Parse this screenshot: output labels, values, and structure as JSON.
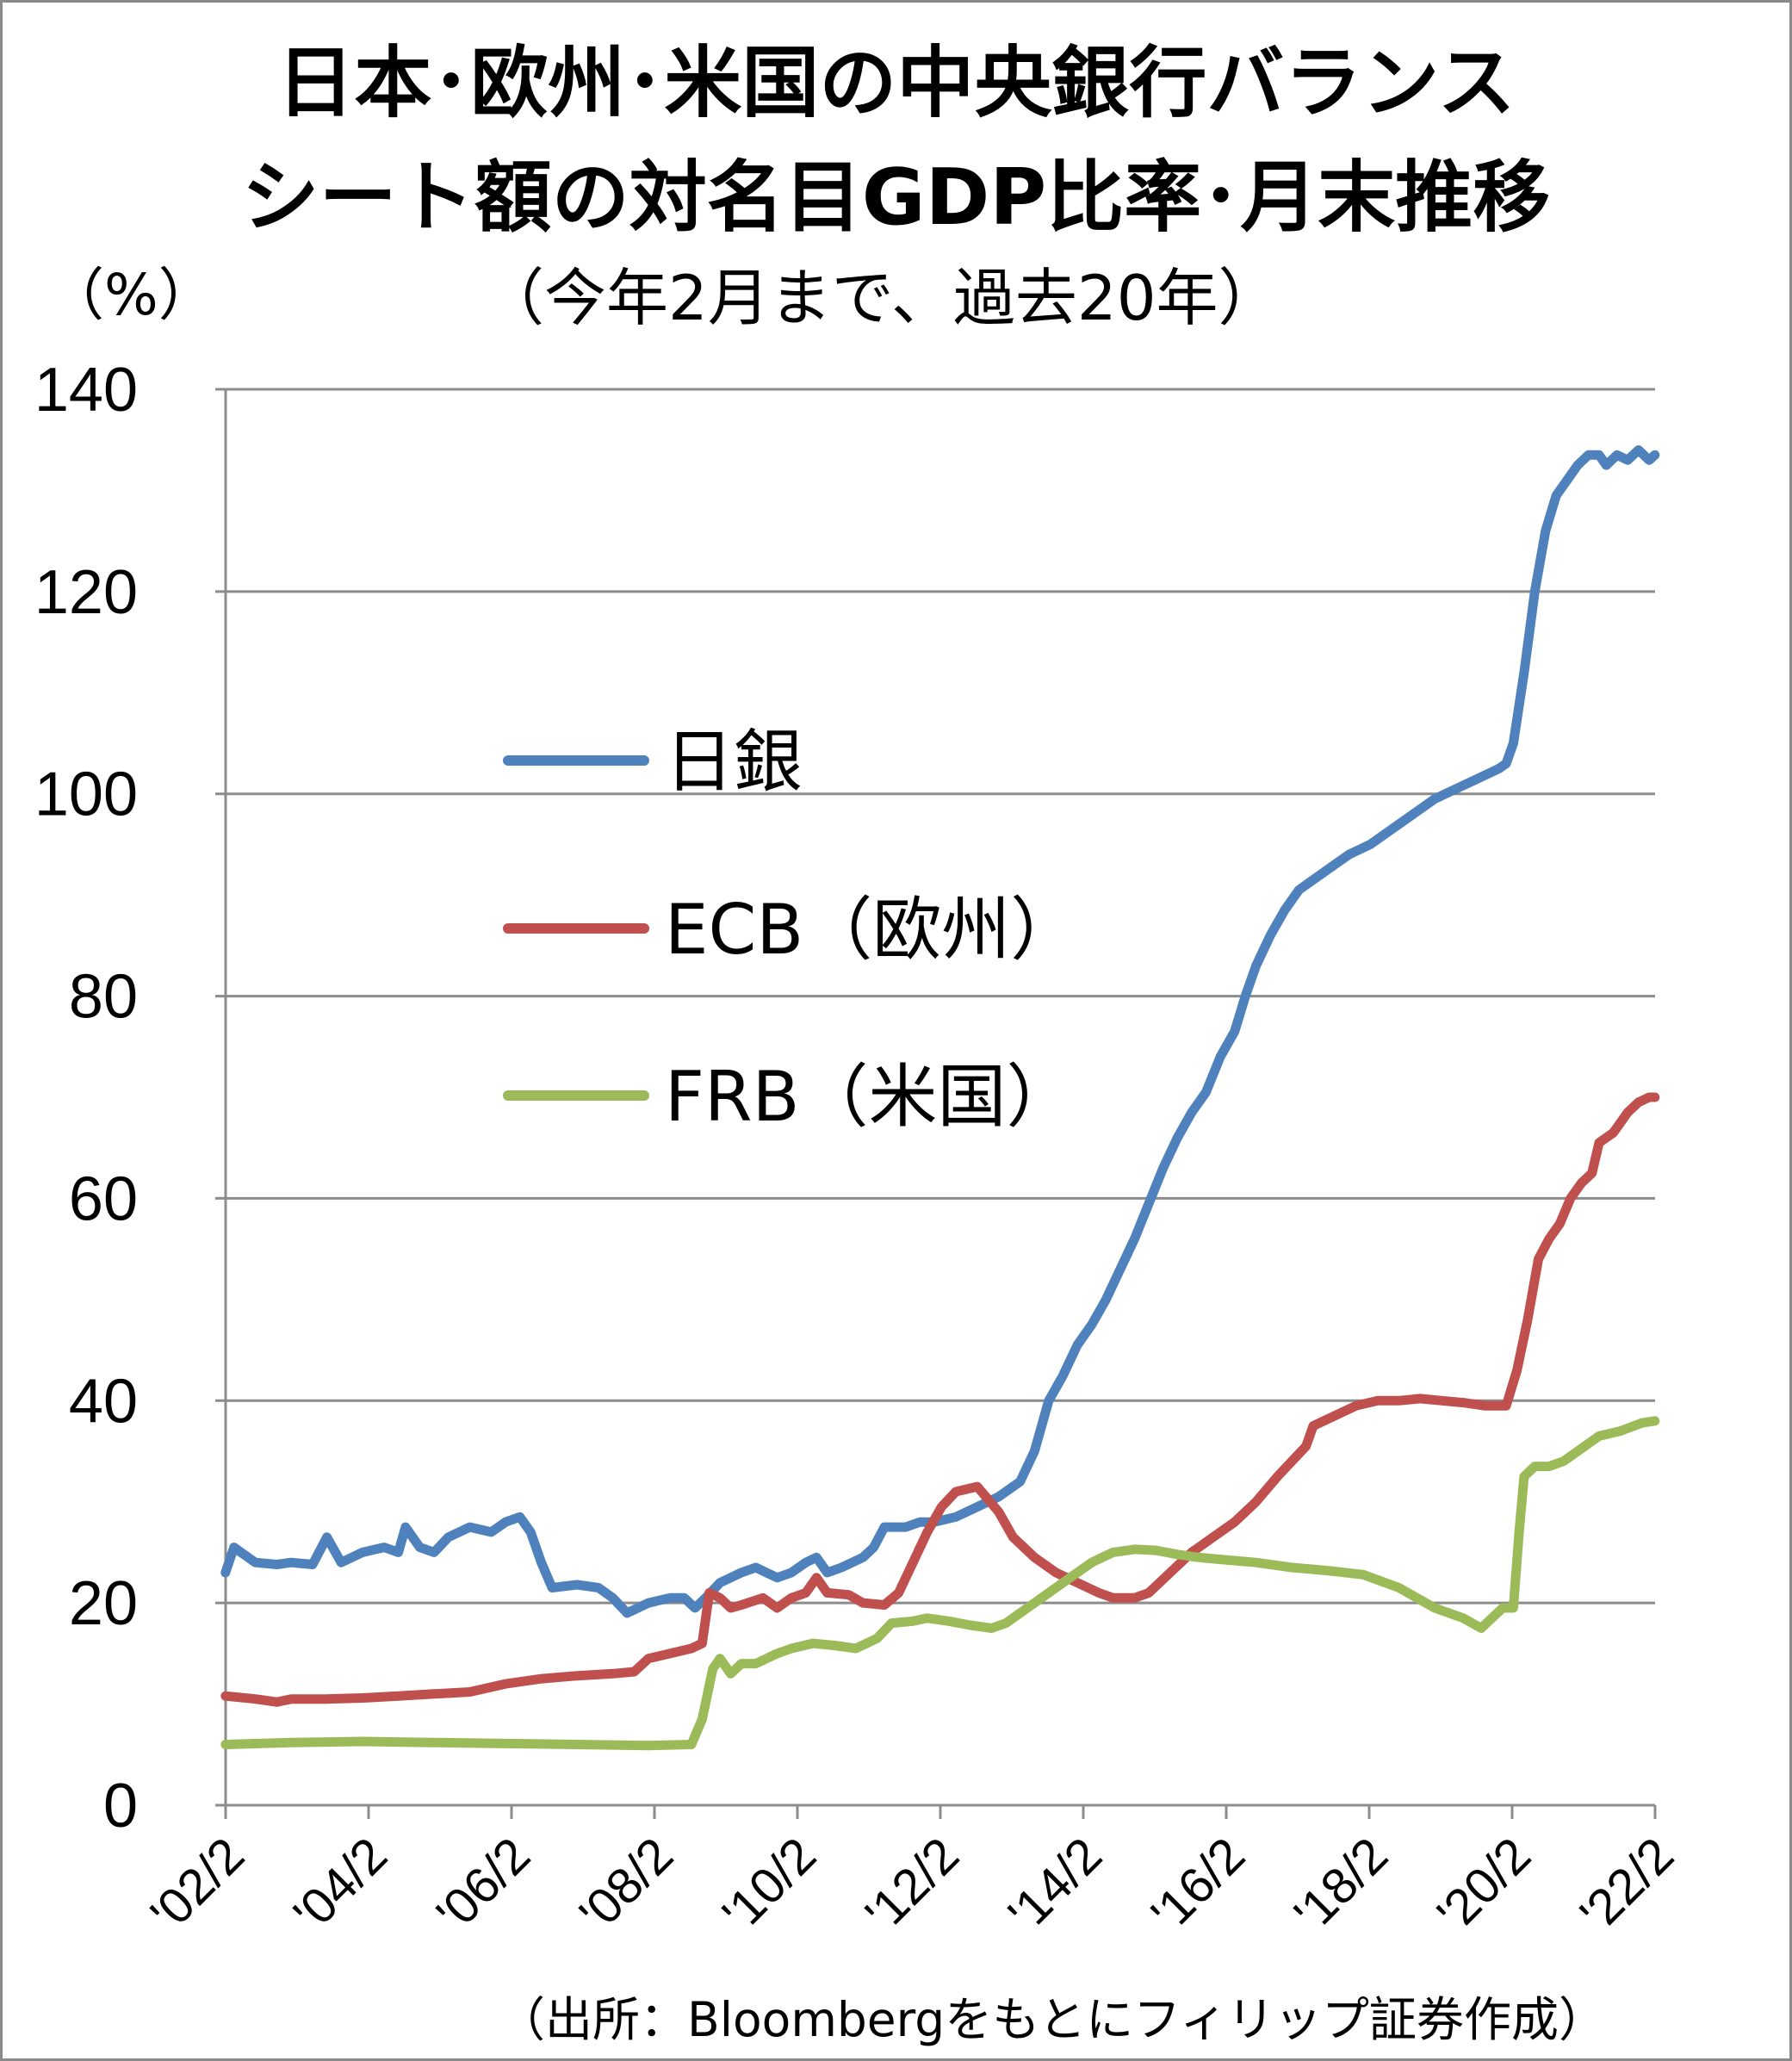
{
  "chart_data": {
    "type": "line",
    "title": "日本･欧州･米国の中央銀行バランスシート額の対名目GDP比率･月末推移",
    "title_lines": [
      "日本･欧州･米国の中央銀行バランス",
      "シート額の対名目GDP比率･月末推移"
    ],
    "subtitle": "（今年2月まで、過去20年）",
    "ylabel": "（%）",
    "xlabel": "",
    "ylim": [
      0,
      140
    ],
    "yticks": [
      "0",
      "20",
      "40",
      "60",
      "80",
      "100",
      "120",
      "140"
    ],
    "xticks": [
      "'02/2",
      "'04/2",
      "'06/2",
      "'08/2",
      "'10/2",
      "'12/2",
      "'14/2",
      "'16/2",
      "'18/2",
      "'20/2",
      "'22/2"
    ],
    "xlim": [
      2002.083,
      2022.083
    ],
    "grid": "horizontal",
    "legend_position": "center-left",
    "series": [
      {
        "name": "日銀",
        "color": "#4F81BD",
        "points": [
          [
            2002.08,
            23
          ],
          [
            2002.2,
            25.5
          ],
          [
            2002.5,
            24
          ],
          [
            2002.8,
            23.8
          ],
          [
            2003.0,
            24
          ],
          [
            2003.3,
            23.8
          ],
          [
            2003.5,
            26.5
          ],
          [
            2003.7,
            24
          ],
          [
            2004.0,
            25
          ],
          [
            2004.3,
            25.5
          ],
          [
            2004.5,
            25
          ],
          [
            2004.6,
            27.5
          ],
          [
            2004.8,
            25.5
          ],
          [
            2005.0,
            25
          ],
          [
            2005.2,
            26.5
          ],
          [
            2005.5,
            27.5
          ],
          [
            2005.8,
            27
          ],
          [
            2006.0,
            28
          ],
          [
            2006.2,
            28.5
          ],
          [
            2006.35,
            27
          ],
          [
            2006.5,
            24
          ],
          [
            2006.65,
            21.5
          ],
          [
            2007.0,
            21.8
          ],
          [
            2007.3,
            21.5
          ],
          [
            2007.5,
            20.5
          ],
          [
            2007.7,
            19
          ],
          [
            2008.0,
            20
          ],
          [
            2008.3,
            20.5
          ],
          [
            2008.5,
            20.5
          ],
          [
            2008.65,
            19.5
          ],
          [
            2008.8,
            20.5
          ],
          [
            2009.0,
            22
          ],
          [
            2009.3,
            23
          ],
          [
            2009.5,
            23.5
          ],
          [
            2009.8,
            22.5
          ],
          [
            2010.0,
            23
          ],
          [
            2010.2,
            24
          ],
          [
            2010.35,
            24.5
          ],
          [
            2010.5,
            23
          ],
          [
            2010.7,
            23.5
          ],
          [
            2011.0,
            24.5
          ],
          [
            2011.15,
            25.5
          ],
          [
            2011.3,
            27.5
          ],
          [
            2011.6,
            27.5
          ],
          [
            2011.8,
            28
          ],
          [
            2012.0,
            28
          ],
          [
            2012.3,
            28.5
          ],
          [
            2012.6,
            29.5
          ],
          [
            2012.9,
            30.5
          ],
          [
            2013.2,
            32
          ],
          [
            2013.4,
            35
          ],
          [
            2013.6,
            40
          ],
          [
            2013.8,
            42.5
          ],
          [
            2014.0,
            45.5
          ],
          [
            2014.2,
            47.5
          ],
          [
            2014.4,
            50
          ],
          [
            2014.6,
            53
          ],
          [
            2014.8,
            56
          ],
          [
            2015.0,
            59.5
          ],
          [
            2015.2,
            63
          ],
          [
            2015.4,
            66
          ],
          [
            2015.6,
            68.5
          ],
          [
            2015.8,
            70.5
          ],
          [
            2016.0,
            74
          ],
          [
            2016.2,
            76.5
          ],
          [
            2016.35,
            80
          ],
          [
            2016.5,
            83
          ],
          [
            2016.7,
            86
          ],
          [
            2016.9,
            88.5
          ],
          [
            2017.1,
            90.5
          ],
          [
            2017.3,
            91.5
          ],
          [
            2017.5,
            92.5
          ],
          [
            2017.8,
            94
          ],
          [
            2018.1,
            95
          ],
          [
            2018.4,
            96.5
          ],
          [
            2018.7,
            98
          ],
          [
            2019.0,
            99.5
          ],
          [
            2019.3,
            100.5
          ],
          [
            2019.6,
            101.5
          ],
          [
            2019.9,
            102.5
          ],
          [
            2020.0,
            103
          ],
          [
            2020.1,
            105
          ],
          [
            2020.25,
            112
          ],
          [
            2020.4,
            120
          ],
          [
            2020.55,
            126
          ],
          [
            2020.7,
            129.5
          ],
          [
            2020.85,
            131
          ],
          [
            2021.0,
            132.5
          ],
          [
            2021.15,
            133.5
          ],
          [
            2021.3,
            133.5
          ],
          [
            2021.4,
            132.5
          ],
          [
            2021.55,
            133.5
          ],
          [
            2021.7,
            133
          ],
          [
            2021.85,
            134
          ],
          [
            2022.0,
            133
          ],
          [
            2022.08,
            133.5
          ]
        ]
      },
      {
        "name": "ECB（欧州）",
        "color": "#C0504D",
        "points": [
          [
            2002.08,
            10.8
          ],
          [
            2002.5,
            10.5
          ],
          [
            2002.8,
            10.2
          ],
          [
            2003.0,
            10.5
          ],
          [
            2003.5,
            10.5
          ],
          [
            2004.0,
            10.6
          ],
          [
            2004.5,
            10.8
          ],
          [
            2005.0,
            11
          ],
          [
            2005.5,
            11.2
          ],
          [
            2006.0,
            12
          ],
          [
            2006.5,
            12.5
          ],
          [
            2007.0,
            12.8
          ],
          [
            2007.5,
            13
          ],
          [
            2007.8,
            13.2
          ],
          [
            2008.0,
            14.5
          ],
          [
            2008.3,
            15
          ],
          [
            2008.6,
            15.5
          ],
          [
            2008.75,
            16
          ],
          [
            2008.85,
            21
          ],
          [
            2009.0,
            20.5
          ],
          [
            2009.15,
            19.5
          ],
          [
            2009.3,
            19.8
          ],
          [
            2009.6,
            20.5
          ],
          [
            2009.8,
            19.5
          ],
          [
            2010.0,
            20.5
          ],
          [
            2010.2,
            21
          ],
          [
            2010.35,
            22.5
          ],
          [
            2010.5,
            21
          ],
          [
            2010.8,
            20.8
          ],
          [
            2011.0,
            20
          ],
          [
            2011.3,
            19.8
          ],
          [
            2011.5,
            21
          ],
          [
            2011.7,
            24
          ],
          [
            2011.9,
            27
          ],
          [
            2012.1,
            29.5
          ],
          [
            2012.3,
            31
          ],
          [
            2012.6,
            31.5
          ],
          [
            2012.9,
            29
          ],
          [
            2013.1,
            26.5
          ],
          [
            2013.4,
            24.5
          ],
          [
            2013.7,
            23
          ],
          [
            2014.0,
            22
          ],
          [
            2014.3,
            21
          ],
          [
            2014.5,
            20.5
          ],
          [
            2014.8,
            20.5
          ],
          [
            2015.0,
            21
          ],
          [
            2015.3,
            23
          ],
          [
            2015.6,
            25
          ],
          [
            2015.9,
            26.5
          ],
          [
            2016.2,
            28
          ],
          [
            2016.5,
            30
          ],
          [
            2016.8,
            32.5
          ],
          [
            2017.0,
            34
          ],
          [
            2017.2,
            35.5
          ],
          [
            2017.3,
            37.5
          ],
          [
            2017.6,
            38.5
          ],
          [
            2017.9,
            39.5
          ],
          [
            2018.2,
            40
          ],
          [
            2018.5,
            40
          ],
          [
            2018.8,
            40.2
          ],
          [
            2019.1,
            40
          ],
          [
            2019.4,
            39.8
          ],
          [
            2019.7,
            39.5
          ],
          [
            2019.9,
            39.5
          ],
          [
            2020.0,
            39.5
          ],
          [
            2020.15,
            43
          ],
          [
            2020.3,
            48
          ],
          [
            2020.45,
            54
          ],
          [
            2020.6,
            56
          ],
          [
            2020.75,
            57.5
          ],
          [
            2020.9,
            60
          ],
          [
            2021.05,
            61.5
          ],
          [
            2021.2,
            62.5
          ],
          [
            2021.3,
            65.5
          ],
          [
            2021.5,
            66.5
          ],
          [
            2021.7,
            68.5
          ],
          [
            2021.85,
            69.5
          ],
          [
            2022.0,
            70
          ],
          [
            2022.08,
            70
          ]
        ]
      },
      {
        "name": "FRB（米国）",
        "color": "#9BBB59",
        "points": [
          [
            2002.08,
            6
          ],
          [
            2003.0,
            6.2
          ],
          [
            2004.0,
            6.3
          ],
          [
            2005.0,
            6.2
          ],
          [
            2006.0,
            6.1
          ],
          [
            2007.0,
            6
          ],
          [
            2008.0,
            5.9
          ],
          [
            2008.6,
            6
          ],
          [
            2008.75,
            8.5
          ],
          [
            2008.9,
            13.5
          ],
          [
            2009.0,
            14.5
          ],
          [
            2009.15,
            13
          ],
          [
            2009.3,
            14
          ],
          [
            2009.5,
            14
          ],
          [
            2009.8,
            15
          ],
          [
            2010.0,
            15.5
          ],
          [
            2010.3,
            16
          ],
          [
            2010.6,
            15.8
          ],
          [
            2010.9,
            15.5
          ],
          [
            2011.2,
            16.5
          ],
          [
            2011.4,
            18
          ],
          [
            2011.7,
            18.2
          ],
          [
            2011.9,
            18.5
          ],
          [
            2012.2,
            18.2
          ],
          [
            2012.5,
            17.8
          ],
          [
            2012.8,
            17.5
          ],
          [
            2013.0,
            18
          ],
          [
            2013.3,
            19.5
          ],
          [
            2013.6,
            21
          ],
          [
            2013.9,
            22.5
          ],
          [
            2014.2,
            24
          ],
          [
            2014.5,
            25
          ],
          [
            2014.8,
            25.3
          ],
          [
            2015.1,
            25.2
          ],
          [
            2015.4,
            24.8
          ],
          [
            2015.7,
            24.5
          ],
          [
            2016.0,
            24.3
          ],
          [
            2016.5,
            24
          ],
          [
            2017.0,
            23.5
          ],
          [
            2017.5,
            23.2
          ],
          [
            2018.0,
            22.8
          ],
          [
            2018.5,
            21.5
          ],
          [
            2019.0,
            19.5
          ],
          [
            2019.4,
            18.5
          ],
          [
            2019.65,
            17.5
          ],
          [
            2019.8,
            18.5
          ],
          [
            2019.95,
            19.5
          ],
          [
            2020.1,
            19.5
          ],
          [
            2020.18,
            27
          ],
          [
            2020.25,
            32.5
          ],
          [
            2020.4,
            33.5
          ],
          [
            2020.6,
            33.5
          ],
          [
            2020.8,
            34
          ],
          [
            2021.0,
            35
          ],
          [
            2021.3,
            36.5
          ],
          [
            2021.6,
            37
          ],
          [
            2021.9,
            37.8
          ],
          [
            2022.08,
            38
          ]
        ]
      }
    ]
  },
  "source_note": "（出所：Bloombergをもとにフィリップ証券作成）"
}
